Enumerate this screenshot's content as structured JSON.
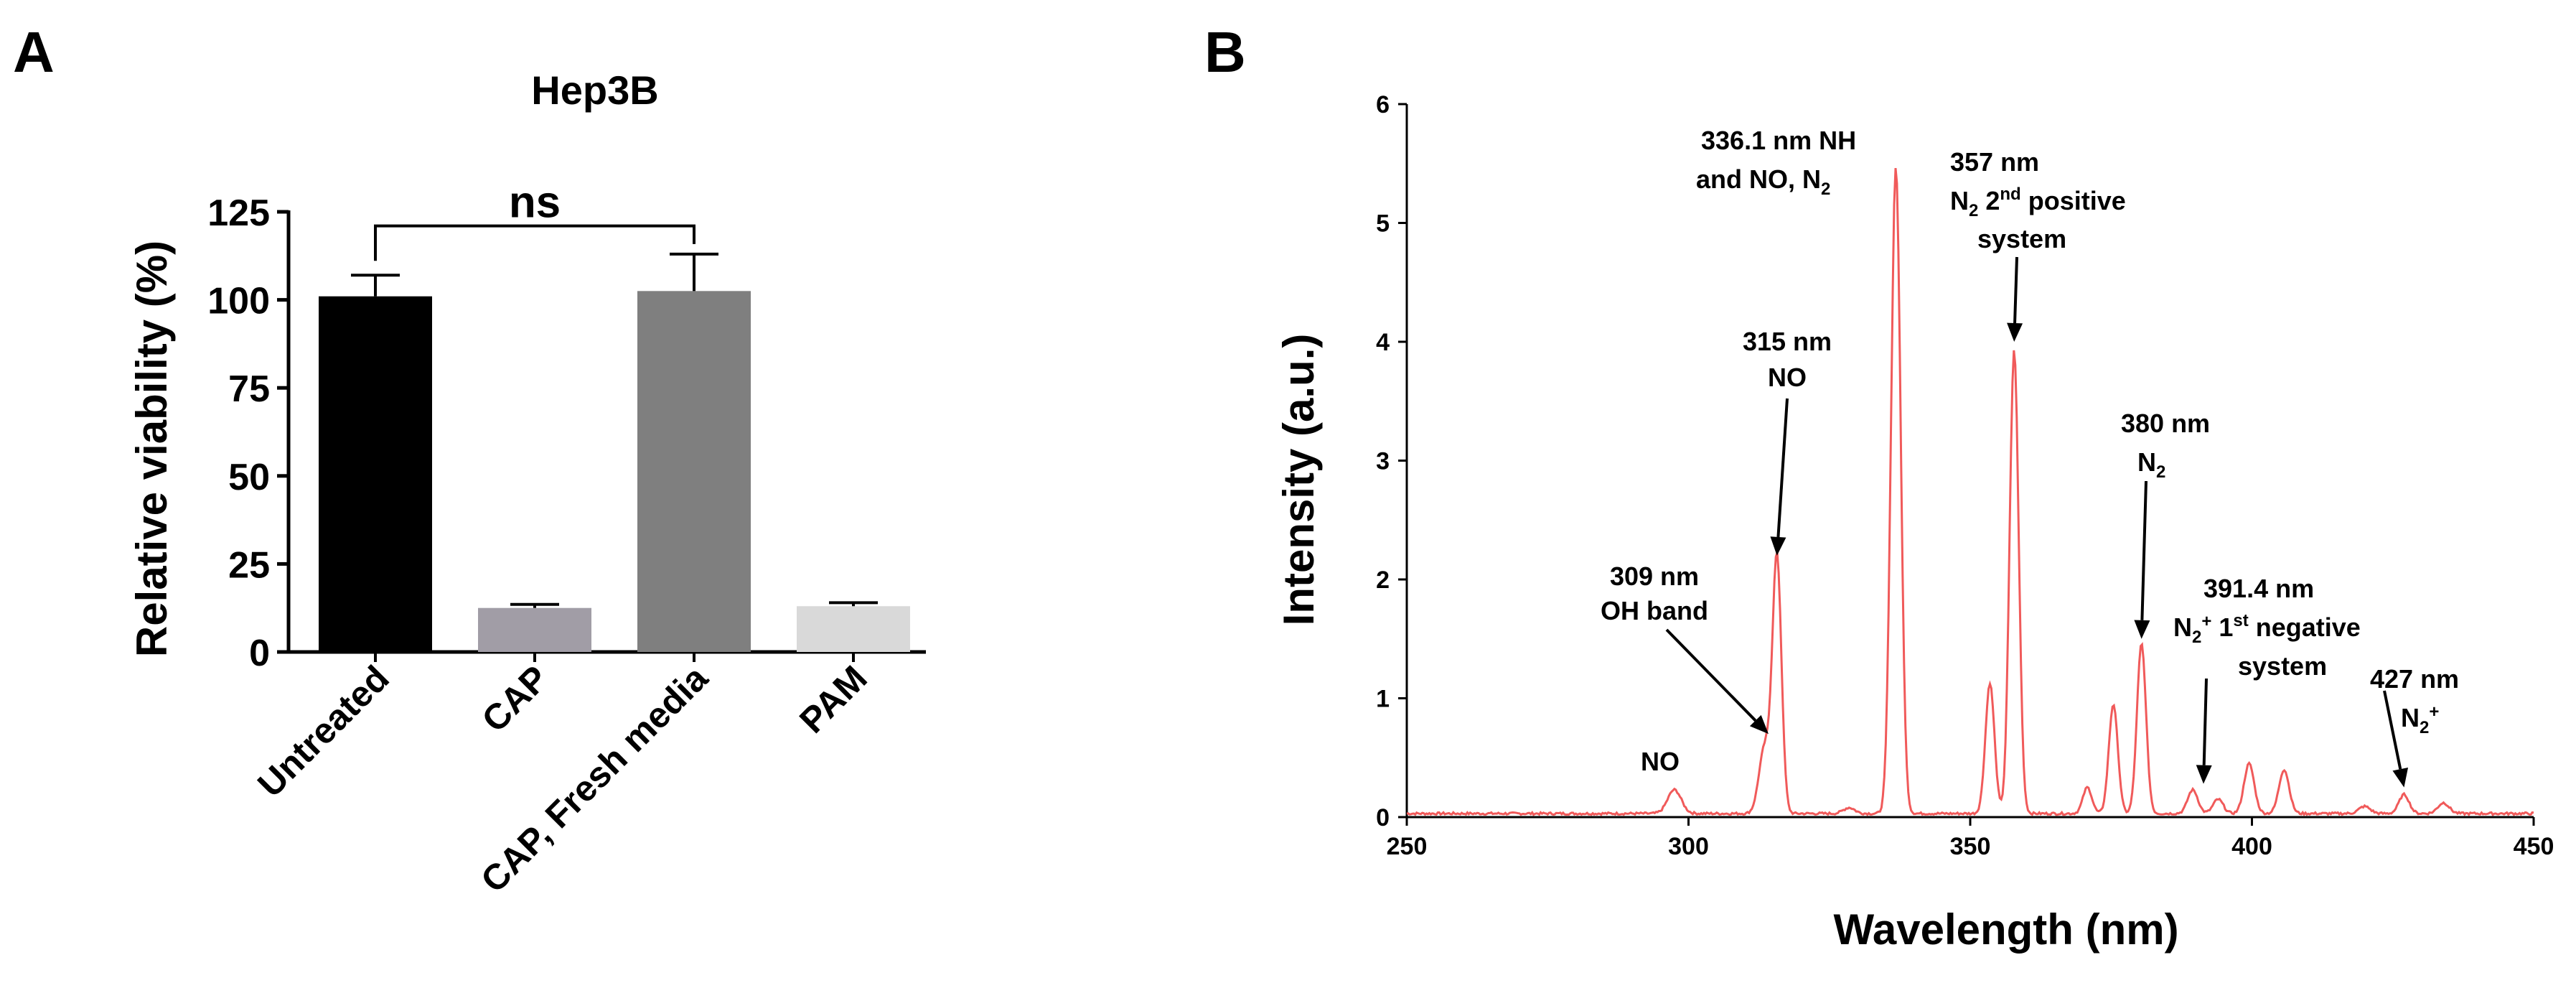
{
  "panels": {
    "a_label": "A",
    "b_label": "B"
  },
  "chart_data": [
    {
      "type": "bar",
      "title": "Hep3B",
      "xlabel": "",
      "ylabel": "Relative viability (%)",
      "ylim": [
        0,
        125
      ],
      "yticks": [
        0,
        25,
        50,
        75,
        100,
        125
      ],
      "categories": [
        "Untreated",
        "CAP",
        "CAP, Fresh media",
        "PAM"
      ],
      "values": [
        101,
        12.5,
        102.5,
        13
      ],
      "errors": [
        6,
        1,
        10.5,
        1
      ],
      "bar_colors": [
        "#000000",
        "#a19da6",
        "#7f7f7f",
        "#d9d9d9"
      ],
      "significance": {
        "from": "Untreated",
        "to": "CAP, Fresh media",
        "label": "ns"
      },
      "grid": false
    },
    {
      "type": "line",
      "title": "",
      "xlabel": "Wavelength (nm)",
      "ylabel": "Intensity (a.u.)",
      "xlim": [
        250,
        450
      ],
      "ylim": [
        0,
        6
      ],
      "xticks": [
        250,
        300,
        350,
        400,
        450
      ],
      "yticks": [
        0,
        1,
        2,
        3,
        4,
        5,
        6
      ],
      "grid": false,
      "series": [
        {
          "color": "#f05a5a",
          "baseline": 0.03,
          "peaks": [
            {
              "x": 297.5,
              "y": 0.2,
              "w": 1.2
            },
            {
              "x": 313.5,
              "y": 0.55,
              "w": 1.0
            },
            {
              "x": 315.7,
              "y": 2.15,
              "w": 0.8
            },
            {
              "x": 328.5,
              "y": 0.05,
              "w": 1.0
            },
            {
              "x": 336.8,
              "y": 5.45,
              "w": 0.85
            },
            {
              "x": 353.5,
              "y": 1.1,
              "w": 0.8
            },
            {
              "x": 357.8,
              "y": 3.9,
              "w": 0.8
            },
            {
              "x": 370.8,
              "y": 0.22,
              "w": 0.8
            },
            {
              "x": 375.4,
              "y": 0.92,
              "w": 0.8
            },
            {
              "x": 380.4,
              "y": 1.43,
              "w": 0.8
            },
            {
              "x": 389.5,
              "y": 0.2,
              "w": 0.9
            },
            {
              "x": 394.0,
              "y": 0.12,
              "w": 0.9
            },
            {
              "x": 399.5,
              "y": 0.42,
              "w": 0.9
            },
            {
              "x": 405.7,
              "y": 0.37,
              "w": 0.9
            },
            {
              "x": 420.0,
              "y": 0.06,
              "w": 1.0
            },
            {
              "x": 427.0,
              "y": 0.16,
              "w": 0.9
            },
            {
              "x": 434.0,
              "y": 0.09,
              "w": 1.0
            }
          ]
        }
      ],
      "annotations": [
        {
          "id": "no",
          "lines": [
            "NO"
          ]
        },
        {
          "id": "oh",
          "lines": [
            "309 nm",
            "OH band"
          ],
          "arrow_to": [
            314.2,
            0.7
          ]
        },
        {
          "id": "no315",
          "lines": [
            "315 nm",
            "NO"
          ],
          "arrow_to": [
            315.7,
            2.2
          ]
        },
        {
          "id": "nh",
          "lines": [
            "336.1 nm NH",
            "and  NO, N2"
          ]
        },
        {
          "id": "n2second",
          "lines": [
            "357 nm",
            "N2 2nd positive",
            "system"
          ],
          "arrow_to": [
            357.8,
            4.0
          ]
        },
        {
          "id": "n2_380",
          "lines": [
            "380 nm",
            "N2"
          ],
          "arrow_to": [
            380.4,
            1.5
          ]
        },
        {
          "id": "n2plus_391",
          "lines": [
            "391.4 nm",
            "N2+ 1st negative",
            "system"
          ],
          "arrow_to": [
            391.4,
            0.28
          ]
        },
        {
          "id": "n2plus_427",
          "lines": [
            "427 nm",
            "N2+"
          ],
          "arrow_to": [
            427.0,
            0.25
          ]
        }
      ]
    }
  ]
}
